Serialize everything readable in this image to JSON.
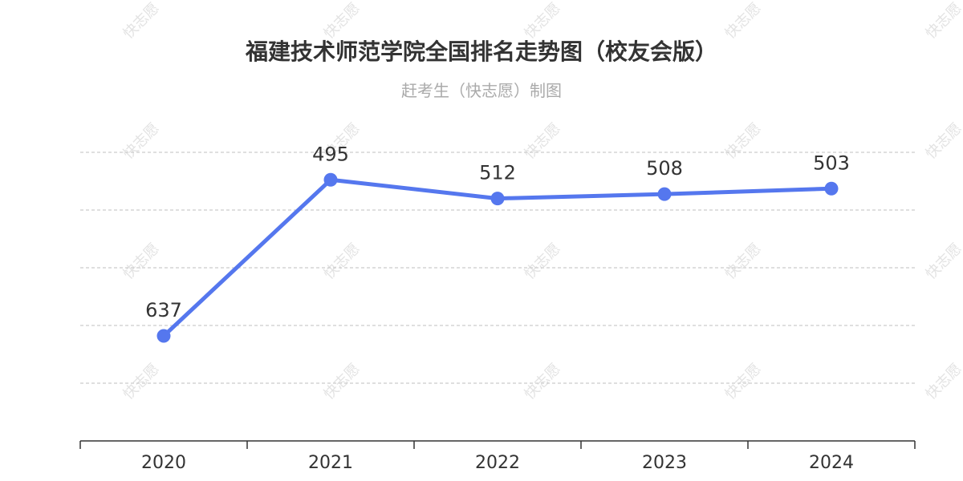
{
  "chart_data": {
    "type": "line",
    "title": "福建技术师范学院全国排名走势图（校友会版）",
    "subtitle": "赶考生（快志愿）制图",
    "categories": [
      "2020",
      "2021",
      "2022",
      "2023",
      "2024"
    ],
    "series": [
      {
        "values": [
          637,
          495,
          512,
          508,
          503
        ]
      }
    ],
    "y_axis": {
      "inverted": true,
      "ylim": [
        470,
        680
      ],
      "grid": true,
      "tick_labels_visible": false
    },
    "line_color": "#5577ee"
  },
  "watermark": "快志愿"
}
